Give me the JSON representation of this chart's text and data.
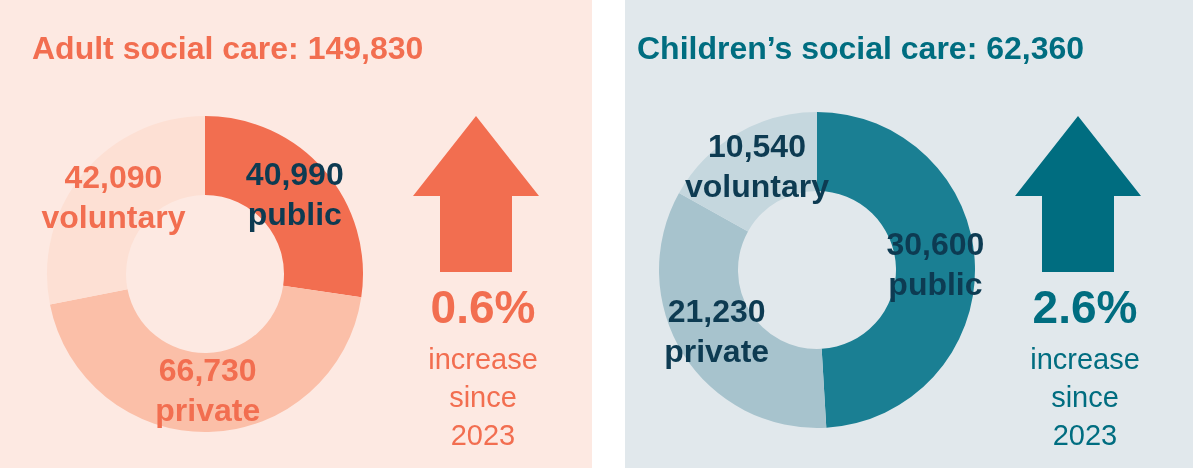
{
  "chart_data": [
    {
      "type": "donut",
      "title": "Adult social care: 149,830",
      "categories": [
        "public",
        "private",
        "voluntary"
      ],
      "values": [
        40990,
        66730,
        42090
      ],
      "colors": [
        "#f26e50",
        "#fbbfa8",
        "#fde0d4"
      ],
      "value_labels": [
        "40,990",
        "66,730",
        "42,090"
      ],
      "annotations": [
        "0.6%",
        "increase since 2023"
      ]
    },
    {
      "type": "donut",
      "title": "Children’s social care: 62,360",
      "categories": [
        "public",
        "private",
        "voluntary"
      ],
      "values": [
        30600,
        21230,
        10540
      ],
      "colors": [
        "#1a7f93",
        "#a7c3cd",
        "#c5d7de"
      ],
      "value_labels": [
        "30,600",
        "21,230",
        "10,540"
      ],
      "annotations": [
        "2.6%",
        "increase since 2023"
      ]
    }
  ]
}
